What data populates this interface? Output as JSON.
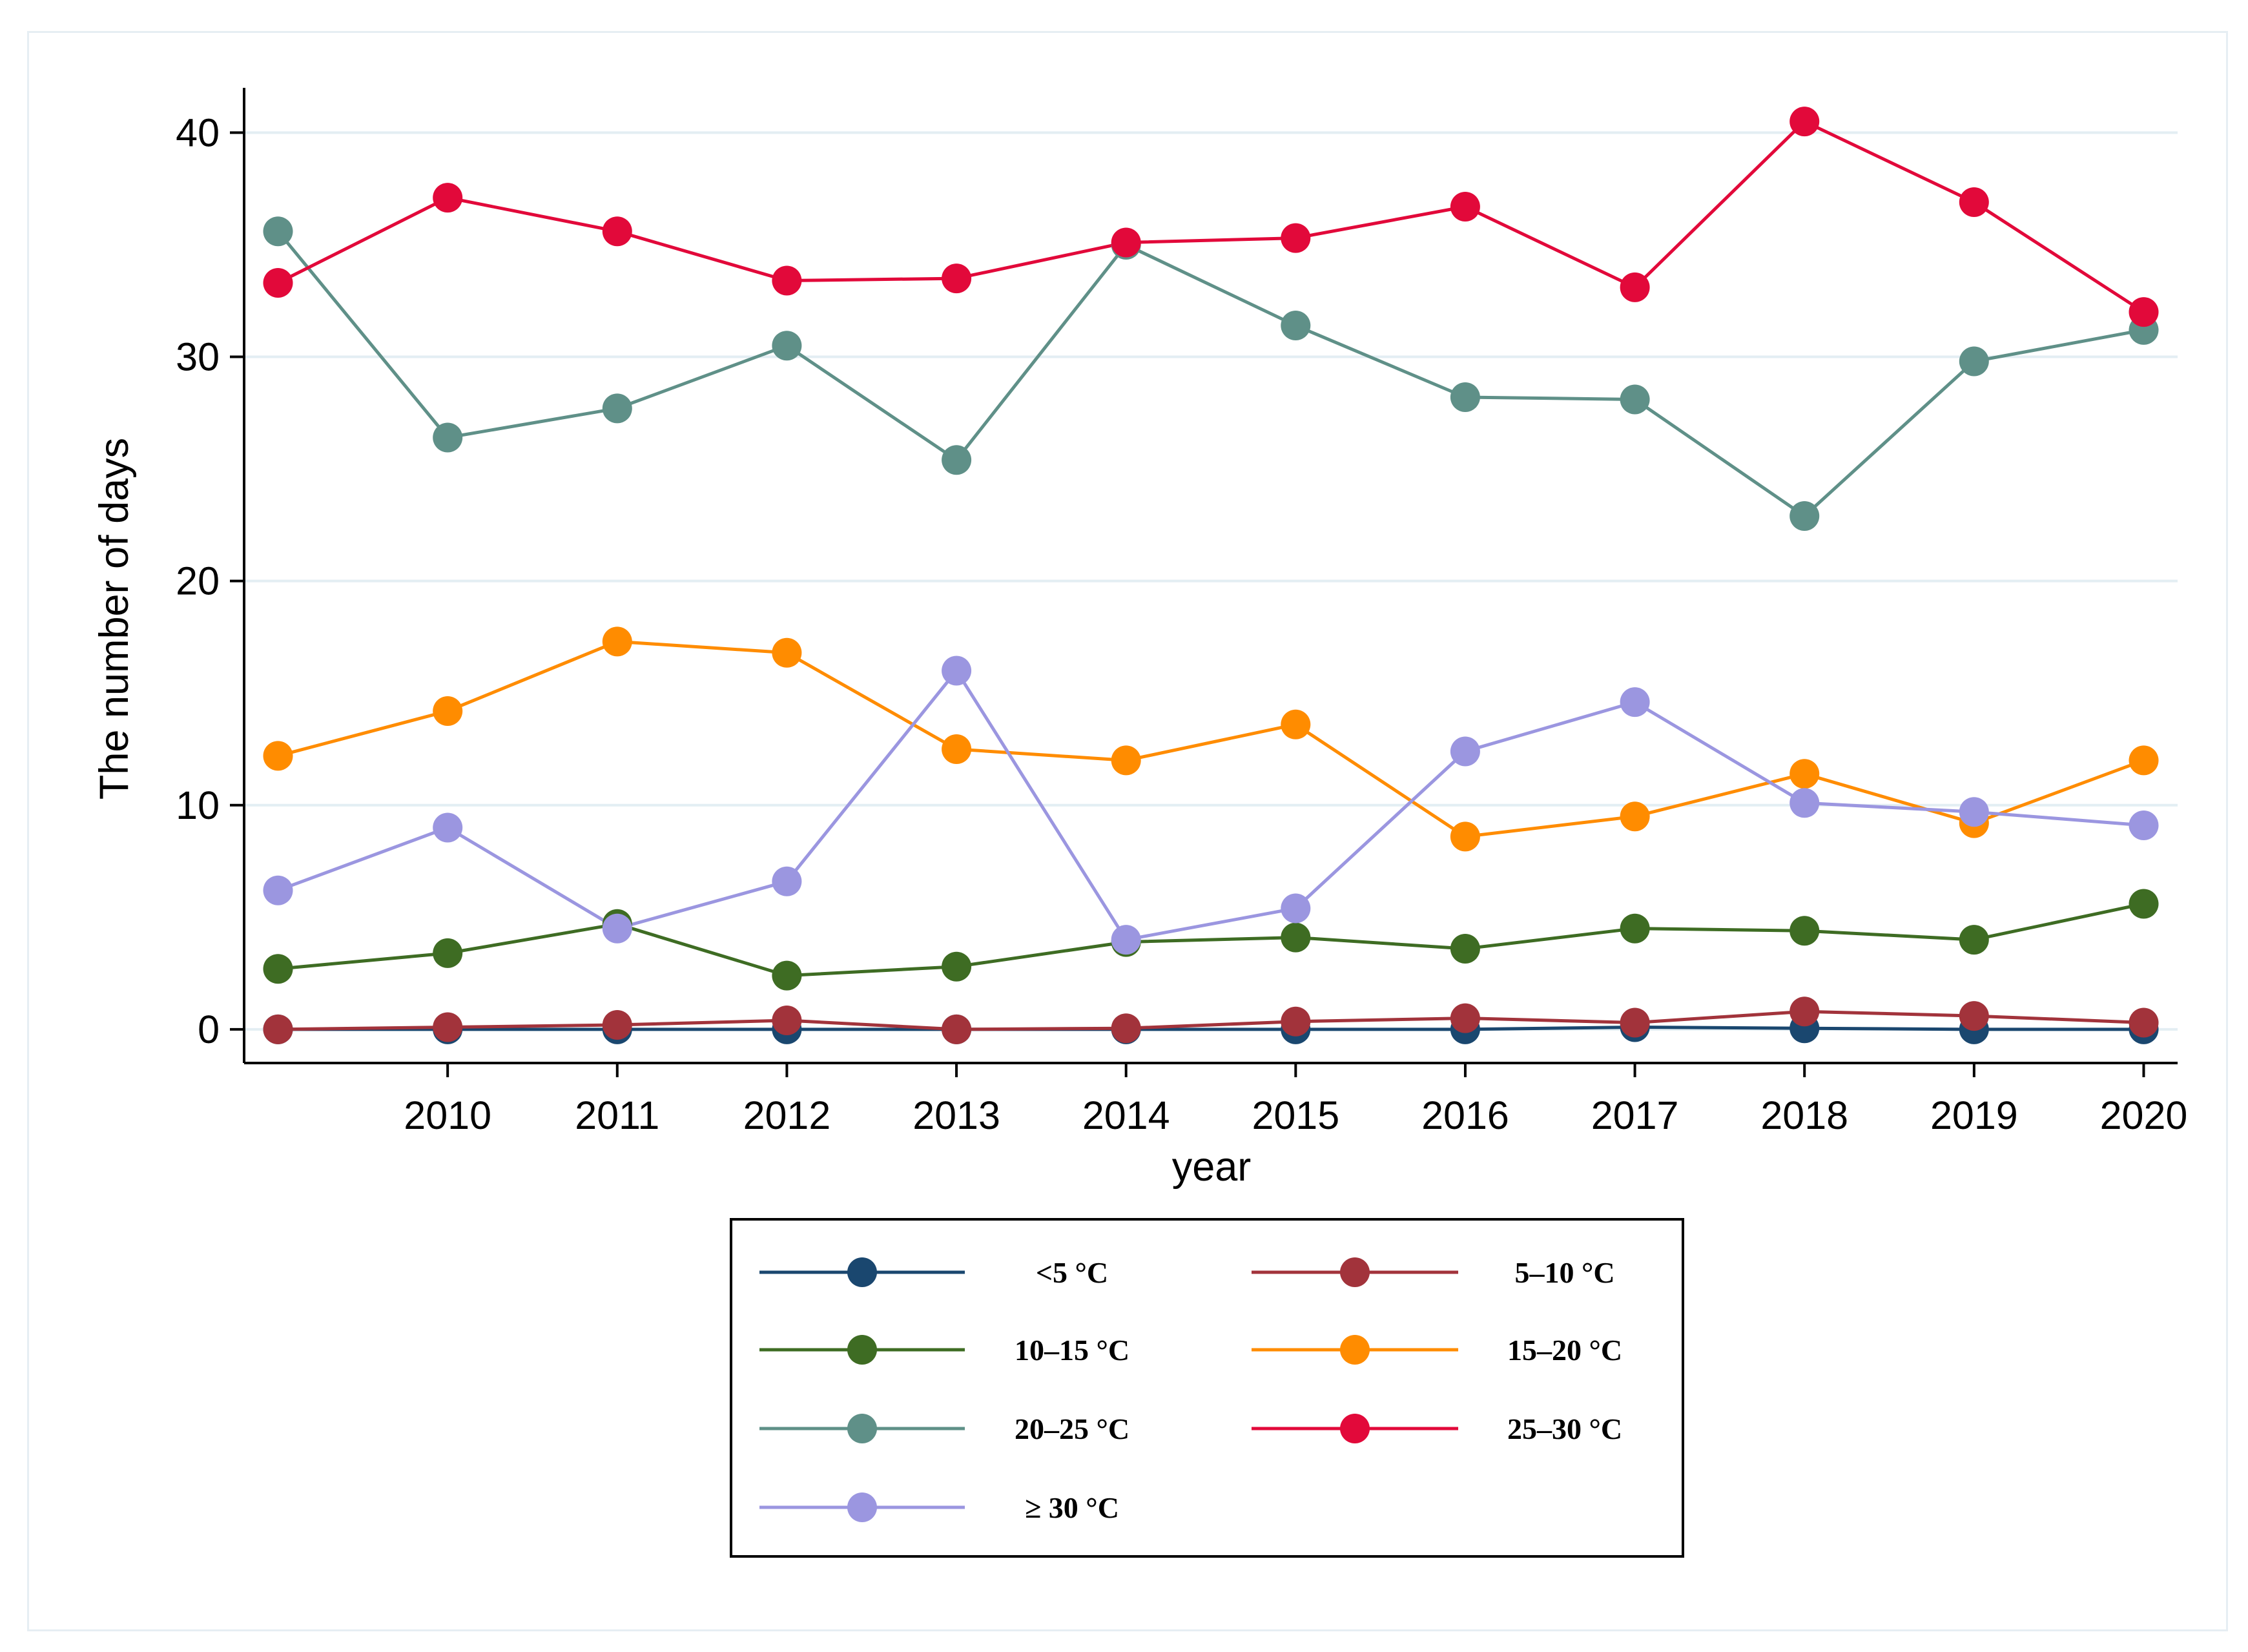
{
  "chart_data": {
    "type": "line",
    "title": "",
    "xlabel": "year",
    "ylabel": "The number of days",
    "x": [
      2009,
      2010,
      2011,
      2012,
      2013,
      2014,
      2015,
      2016,
      2017,
      2018,
      2019,
      2020
    ],
    "x_tick_labels": [
      "2010",
      "2011",
      "2012",
      "2013",
      "2014",
      "2015",
      "2016",
      "2017",
      "2018",
      "2019",
      "2020"
    ],
    "x_ticks": [
      2010,
      2011,
      2012,
      2013,
      2014,
      2015,
      2016,
      2017,
      2018,
      2019,
      2020
    ],
    "xlim": [
      2008.8,
      2020.2
    ],
    "y_ticks": [
      0,
      10,
      20,
      30,
      40
    ],
    "y_tick_labels": [
      "0",
      "10",
      "20",
      "30",
      "40"
    ],
    "ylim": [
      -1.5,
      42
    ],
    "grid": true,
    "legend_position": "bottom",
    "series": [
      {
        "name": "<5 °C",
        "color": "#1a476f",
        "values": [
          0,
          0,
          0,
          0,
          0,
          0,
          0,
          0,
          0.1,
          0.05,
          0,
          0
        ]
      },
      {
        "name": "5–10 °C",
        "color": "#a2333b",
        "values": [
          0,
          0.1,
          0.2,
          0.4,
          0,
          0.05,
          0.35,
          0.5,
          0.3,
          0.8,
          0.6,
          0.3
        ]
      },
      {
        "name": "10–15 °C",
        "color": "#3e6c23",
        "values": [
          2.7,
          3.4,
          4.7,
          2.4,
          2.8,
          3.9,
          4.1,
          3.6,
          4.5,
          4.4,
          4.0,
          5.6
        ]
      },
      {
        "name": "15–20 °C",
        "color": "#ff8c00",
        "values": [
          12.2,
          14.2,
          17.3,
          16.8,
          12.5,
          12.0,
          13.6,
          8.6,
          9.5,
          11.4,
          9.2,
          12.0
        ]
      },
      {
        "name": "20–25 °C",
        "color": "#5f9088",
        "values": [
          35.6,
          26.4,
          27.7,
          30.5,
          25.4,
          35.0,
          31.4,
          28.2,
          28.1,
          22.9,
          29.8,
          31.2
        ]
      },
      {
        "name": "25–30 °C",
        "color": "#e2093a",
        "values": [
          33.3,
          37.1,
          35.6,
          33.4,
          33.5,
          35.1,
          35.3,
          36.7,
          33.1,
          40.5,
          36.9,
          32.0
        ]
      },
      {
        "name": "≥ 30  °C",
        "color": "#9b96e0",
        "values": [
          6.2,
          9.0,
          4.5,
          6.6,
          16.0,
          4.0,
          5.4,
          12.4,
          14.6,
          10.1,
          9.7,
          9.1
        ]
      }
    ]
  }
}
